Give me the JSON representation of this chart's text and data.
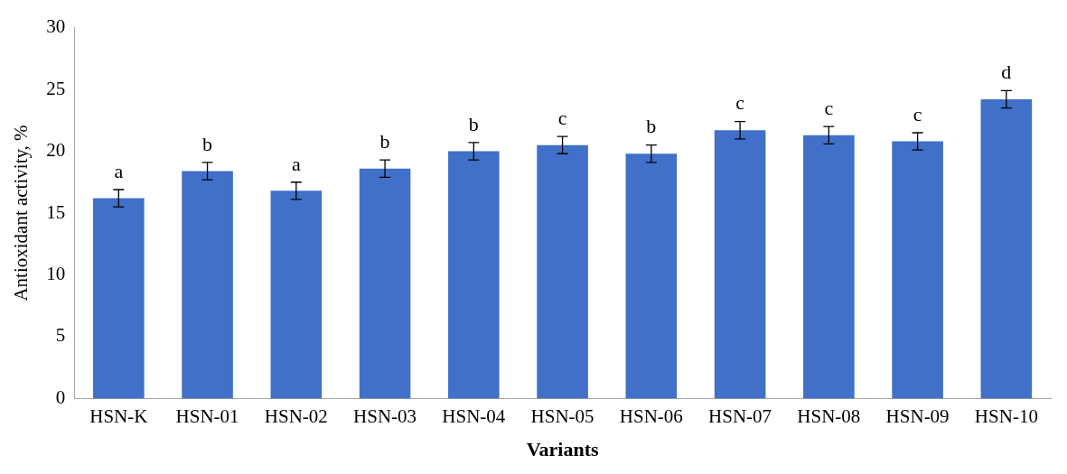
{
  "chart_data": {
    "type": "bar",
    "xlabel": "Variants",
    "ylabel": "Antioxidant activity, %",
    "categories": [
      "HSN-K",
      "HSN-01",
      "HSN-02",
      "HSN-03",
      "HSN-04",
      "HSN-05",
      "HSN-06",
      "HSN-07",
      "HSN-08",
      "HSN-09",
      "HSN-10"
    ],
    "values": [
      16.2,
      18.4,
      16.8,
      18.6,
      20.0,
      20.5,
      19.8,
      21.7,
      21.3,
      20.8,
      24.2
    ],
    "errors": [
      0.7,
      0.7,
      0.7,
      0.7,
      0.7,
      0.7,
      0.7,
      0.7,
      0.7,
      0.7,
      0.7
    ],
    "color": "#4070c8",
    "ylim": [
      0,
      30
    ],
    "yticks": [
      0,
      5,
      10,
      15,
      20,
      25,
      30
    ],
    "grid": false,
    "annotations": [
      {
        "text": "a",
        "x": "HSN-K",
        "y": 16.9
      },
      {
        "text": "b",
        "x": "HSN-01",
        "y": 19.1
      },
      {
        "text": "a",
        "x": "HSN-02",
        "y": 17.5
      },
      {
        "text": "b",
        "x": "HSN-03",
        "y": 19.3
      },
      {
        "text": "b",
        "x": "HSN-04",
        "y": 20.7
      },
      {
        "text": "c",
        "x": "HSN-05",
        "y": 21.2
      },
      {
        "text": "b",
        "x": "HSN-06",
        "y": 20.5
      },
      {
        "text": "c",
        "x": "HSN-07",
        "y": 22.4
      },
      {
        "text": "c",
        "x": "HSN-08",
        "y": 22.0
      },
      {
        "text": "c",
        "x": "HSN-09",
        "y": 21.5
      },
      {
        "text": "d",
        "x": "HSN-10",
        "y": 24.9
      }
    ]
  }
}
